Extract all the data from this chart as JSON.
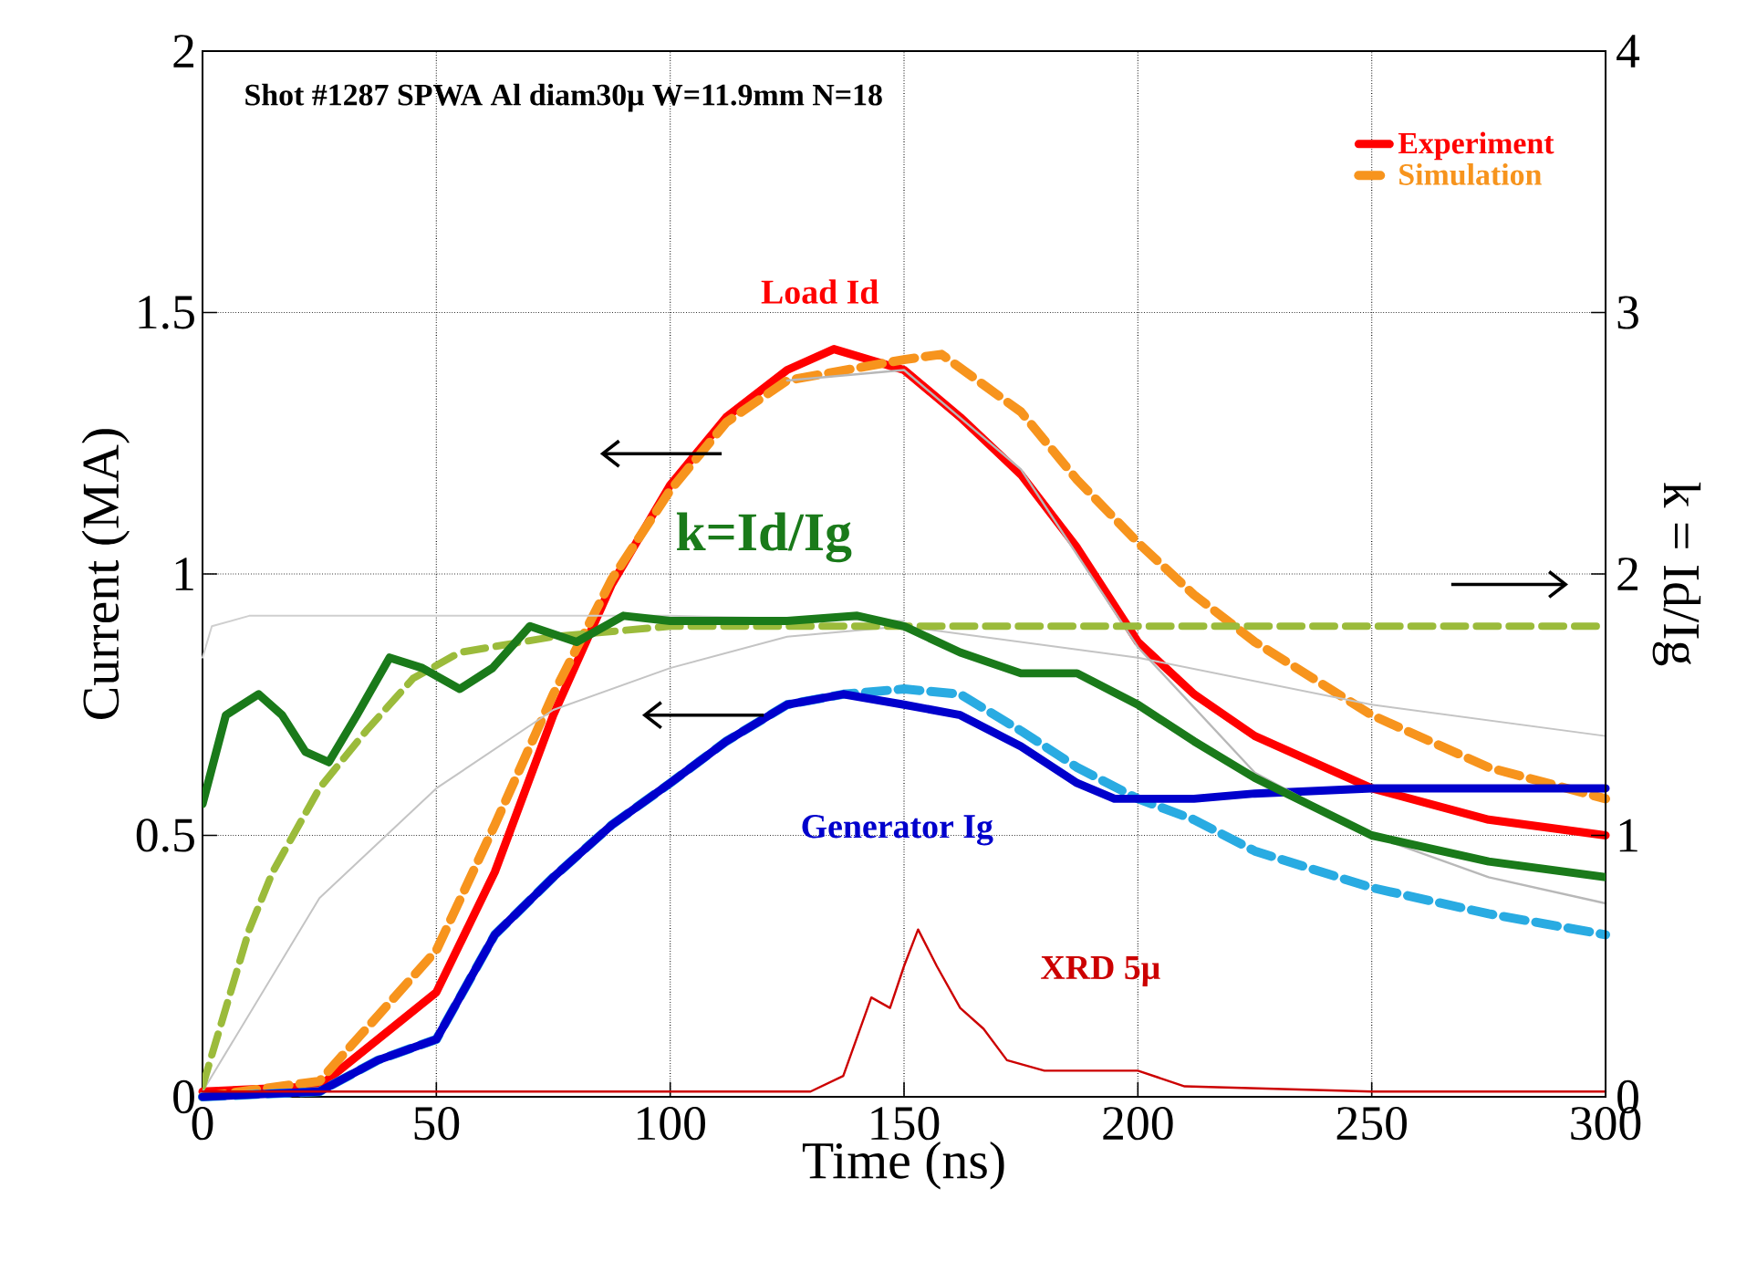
{
  "chart_data": {
    "type": "line",
    "title": "Shot #1287 SPWA Al diam30μ W=11.9mm N=18",
    "xlabel": "Time (ns)",
    "ylabel": "Current (MA)",
    "y2label": "k = Id/Ig",
    "xlim": [
      0,
      300
    ],
    "xticks": [
      0,
      50,
      100,
      150,
      200,
      250,
      300
    ],
    "ylim": [
      0,
      2
    ],
    "yticks": [
      0,
      0.5,
      1,
      1.5,
      2
    ],
    "y2lim": [
      0,
      4
    ],
    "y2ticks": [
      0,
      1,
      2,
      3,
      4
    ],
    "grid": true,
    "legend": "top right",
    "series": [
      {
        "name": "Experiment",
        "color": "#ff0000",
        "line_style": "solid",
        "x": [
          0,
          25,
          50,
          62.5,
          75,
          87.5,
          100,
          112,
          125,
          135,
          150,
          162,
          175,
          187,
          200,
          212,
          225,
          250,
          275,
          300
        ],
        "values": [
          0.01,
          0.02,
          0.2,
          0.43,
          0.73,
          0.98,
          1.17,
          1.3,
          1.39,
          1.43,
          1.39,
          1.3,
          1.19,
          1.05,
          0.87,
          0.77,
          0.69,
          0.59,
          0.53,
          0.5
        ]
      },
      {
        "name": "Simulation",
        "color": "#f7941d",
        "line_style": "dashed",
        "x": [
          0,
          25,
          50,
          62.5,
          75,
          87.5,
          100,
          112,
          125,
          150,
          158,
          175,
          187,
          200,
          212,
          225,
          250,
          275,
          300
        ],
        "values": [
          0,
          0.03,
          0.28,
          0.52,
          0.77,
          0.99,
          1.16,
          1.29,
          1.37,
          1.41,
          1.42,
          1.31,
          1.18,
          1.06,
          0.96,
          0.87,
          0.73,
          0.63,
          0.57
        ]
      },
      {
        "color": "#29abe2",
        "line_style": "dashed",
        "x": [
          0,
          25,
          37.5,
          50,
          62.5,
          75,
          87.5,
          100,
          112,
          125,
          137,
          150,
          162,
          175,
          187,
          200,
          212,
          225,
          250,
          275,
          300
        ],
        "values": [
          0,
          0.01,
          0.07,
          0.11,
          0.31,
          0.42,
          0.52,
          0.6,
          0.68,
          0.75,
          0.77,
          0.78,
          0.77,
          0.7,
          0.63,
          0.57,
          0.53,
          0.47,
          0.4,
          0.35,
          0.31
        ]
      },
      {
        "color": "#0000cc",
        "line_style": "solid",
        "x": [
          0,
          25,
          37.5,
          50,
          62.5,
          75,
          87.5,
          100,
          112,
          125,
          137,
          150,
          162,
          175,
          187,
          195,
          212,
          225,
          250,
          300
        ],
        "values": [
          0,
          0.01,
          0.07,
          0.11,
          0.31,
          0.42,
          0.52,
          0.6,
          0.68,
          0.75,
          0.77,
          0.75,
          0.73,
          0.67,
          0.6,
          0.57,
          0.57,
          0.58,
          0.59,
          0.59
        ]
      },
      {
        "color": "#9bbb3b",
        "line_style": "dashed",
        "axis": "y2",
        "x": [
          0,
          5,
          10,
          15,
          25,
          35,
          45,
          55,
          75,
          100,
          150,
          300
        ],
        "values": [
          0.04,
          0.34,
          0.64,
          0.86,
          1.18,
          1.4,
          1.6,
          1.7,
          1.76,
          1.8,
          1.8,
          1.8
        ]
      },
      {
        "color": "#1a7a1a",
        "line_style": "solid",
        "axis": "y2",
        "x": [
          0,
          5,
          12,
          17,
          22,
          27,
          33,
          40,
          47,
          55,
          62,
          70,
          80,
          90,
          100,
          125,
          140,
          150,
          162,
          175,
          187,
          200,
          212,
          225,
          250,
          275,
          300
        ],
        "values": [
          1.12,
          1.46,
          1.54,
          1.46,
          1.32,
          1.28,
          1.46,
          1.68,
          1.64,
          1.56,
          1.64,
          1.8,
          1.74,
          1.84,
          1.82,
          1.82,
          1.84,
          1.8,
          1.7,
          1.62,
          1.62,
          1.5,
          1.36,
          1.22,
          1.0,
          0.9,
          0.84
        ]
      },
      {
        "color": "#cfcfcf",
        "line_style": "solid",
        "x": [
          0,
          2,
          10,
          50,
          100,
          150
        ],
        "values": [
          0.84,
          0.9,
          0.92,
          0.92,
          0.92,
          0.91
        ]
      },
      {
        "color": "#c4c4c4",
        "line_style": "solid",
        "x": [
          0,
          25,
          50,
          75,
          100,
          125,
          150,
          200,
          250,
          300
        ],
        "values": [
          0.01,
          0.38,
          0.59,
          0.74,
          0.82,
          0.88,
          0.9,
          0.84,
          0.75,
          0.69
        ]
      },
      {
        "color": "#b8b8b8",
        "line_style": "solid",
        "x": [
          125,
          150,
          175,
          200,
          225,
          250,
          275,
          300
        ],
        "values": [
          1.37,
          1.39,
          1.2,
          0.86,
          0.62,
          0.5,
          0.42,
          0.37
        ]
      },
      {
        "color": "#cc0000",
        "line_style": "solid",
        "x": [
          0,
          50,
          100,
          130,
          137,
          143,
          147,
          150,
          153,
          157,
          162,
          167,
          172,
          180,
          200,
          210,
          250,
          300
        ],
        "values": [
          0.01,
          0.01,
          0.01,
          0.01,
          0.04,
          0.19,
          0.17,
          0.25,
          0.32,
          0.25,
          0.17,
          0.13,
          0.07,
          0.05,
          0.05,
          0.02,
          0.01,
          0.01
        ]
      }
    ],
    "annotations": [
      "Load Id",
      "k=Id/Ig",
      "Generator Ig",
      "XRD 5μ"
    ]
  }
}
